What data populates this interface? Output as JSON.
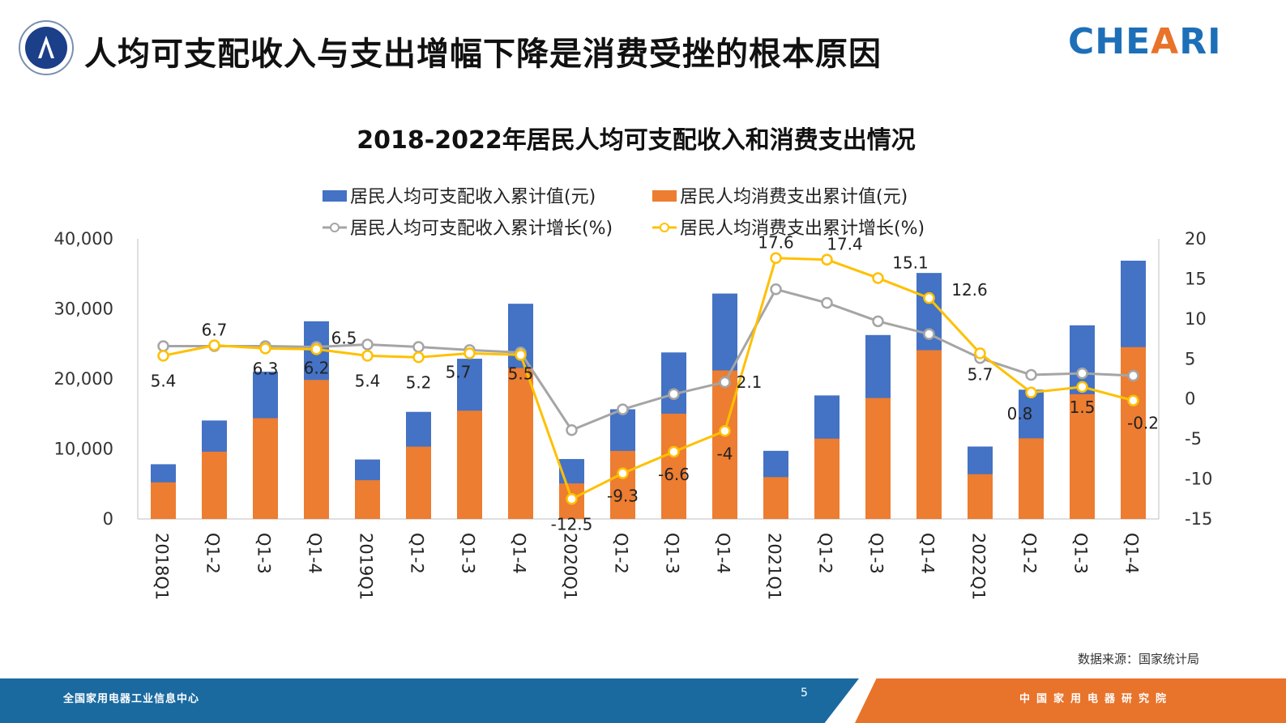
{
  "header": {
    "title": "人均可支配收入与支出增幅下降是消费受挫的根本原因",
    "brand_main": "CHE",
    "brand_accent": "A",
    "brand_tail": "RI"
  },
  "colors": {
    "income_bar": "#4472c4",
    "spending_bar": "#ed7d31",
    "income_growth_line": "#a5a5a5",
    "spending_growth_line": "#ffc000",
    "footer_blue": "#1a6aa0",
    "footer_orange": "#e8732a"
  },
  "chart_data": {
    "type": "bar",
    "title": "2018-2022年居民人均可支配收入和消费支出情况",
    "categories": [
      "2018Q1",
      "Q1-2",
      "Q1-3",
      "Q1-4",
      "2019Q1",
      "Q1-2",
      "Q1-3",
      "Q1-4",
      "2020Q1",
      "Q1-2",
      "Q1-3",
      "Q1-4",
      "2021Q1",
      "Q1-2",
      "Q1-3",
      "Q1-4",
      "2022Q1",
      "Q1-2",
      "Q1-3",
      "Q1-4"
    ],
    "y_left": {
      "ylim": [
        0,
        40000
      ],
      "ticks": [
        "0",
        "10,000",
        "20,000",
        "30,000",
        "40,000"
      ]
    },
    "y_right": {
      "ylim": [
        -15,
        20
      ],
      "ticks": [
        "-15",
        "-10",
        "-5",
        "0",
        "5",
        "10",
        "15",
        "20"
      ]
    },
    "legend_position": "top",
    "series": [
      {
        "name": "居民人均可支配收入累计值(元)",
        "kind": "bar",
        "axis": "left",
        "values": [
          7815,
          14063,
          21035,
          28228,
          8493,
          15294,
          22882,
          30733,
          8561,
          15666,
          23781,
          32189,
          9730,
          17642,
          26265,
          35128,
          10345,
          18463,
          27650,
          36883
        ]
      },
      {
        "name": "居民人均消费支出累计值(元)",
        "kind": "bar",
        "axis": "left",
        "values": [
          5227,
          9609,
          14391,
          19853,
          5538,
          10330,
          15464,
          21559,
          5082,
          9718,
          15034,
          21210,
          5978,
          11471,
          17275,
          24100,
          6393,
          11518,
          17811,
          24538
        ]
      },
      {
        "name": "居民人均可支配收入累计增长(%)",
        "kind": "line",
        "axis": "right",
        "values": [
          6.6,
          6.6,
          6.6,
          6.5,
          6.8,
          6.5,
          6.1,
          5.8,
          -3.9,
          -1.3,
          0.6,
          2.1,
          13.7,
          12.0,
          9.7,
          8.1,
          5.1,
          3.0,
          3.2,
          2.9
        ]
      },
      {
        "name": "居民人均消费支出累计增长(%)",
        "kind": "line",
        "axis": "right",
        "values": [
          5.4,
          6.7,
          6.3,
          6.2,
          5.4,
          5.2,
          5.7,
          5.5,
          -12.5,
          -9.3,
          -6.6,
          -4,
          17.6,
          17.4,
          15.1,
          12.6,
          5.7,
          0.8,
          1.5,
          -0.2
        ],
        "labels": [
          "5.4",
          "6.7",
          "6.3",
          "6.2",
          "5.4",
          "5.2",
          "5.7",
          "5.5",
          "-12.5",
          "-9.3",
          "-6.6",
          "-4",
          "17.6",
          "17.4",
          "15.1",
          "12.6",
          "5.7",
          "0.8",
          "1.5",
          "-0.2"
        ],
        "extra_labels": [
          "6.5",
          "2.1"
        ]
      }
    ]
  },
  "source": "数据来源：国家统计局",
  "footer": {
    "left_text": "全国家用电器工业信息中心",
    "page_number": "5",
    "right_text": "中国家用电器研究院"
  }
}
